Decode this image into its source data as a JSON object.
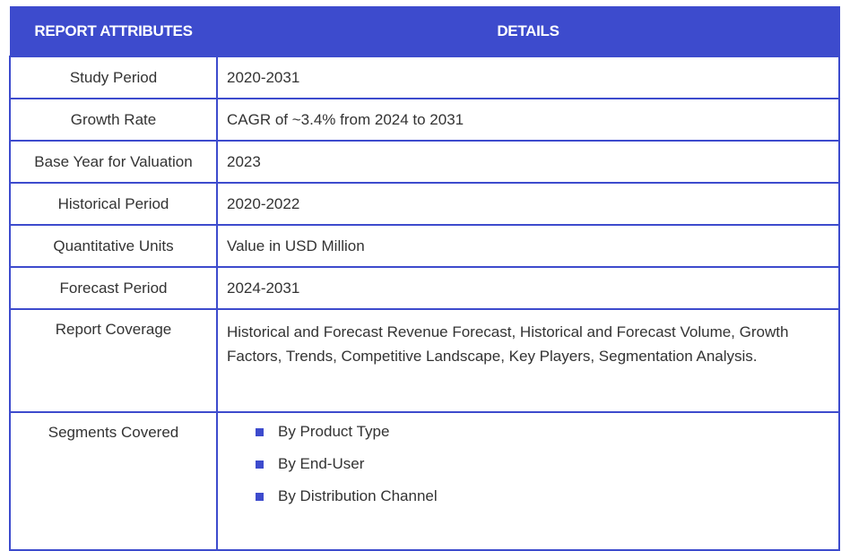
{
  "table": {
    "headers": {
      "attribute": "REPORT ATTRIBUTES",
      "details": "DETAILS"
    },
    "rows": [
      {
        "attribute": "Study Period",
        "details": "2020-2031"
      },
      {
        "attribute": "Growth Rate",
        "details": "CAGR of ~3.4% from 2024 to 2031"
      },
      {
        "attribute": "Base Year for Valuation",
        "details": "2023"
      },
      {
        "attribute": "Historical Period",
        "details": "2020-2022"
      },
      {
        "attribute": "Quantitative Units",
        "details": "Value in USD Million"
      },
      {
        "attribute": "Forecast Period",
        "details": "2024-2031"
      },
      {
        "attribute": "Report Coverage",
        "details": "Historical and Forecast Revenue Forecast, Historical and Forecast Volume, Growth Factors, Trends, Competitive Landscape, Key Players, Segmentation Analysis."
      }
    ],
    "segments": {
      "attribute": "Segments Covered",
      "items": [
        "By Product Type",
        "By End-User",
        "By Distribution Channel"
      ]
    }
  },
  "colors": {
    "accent": "#3d4bcd",
    "text": "#333333"
  }
}
